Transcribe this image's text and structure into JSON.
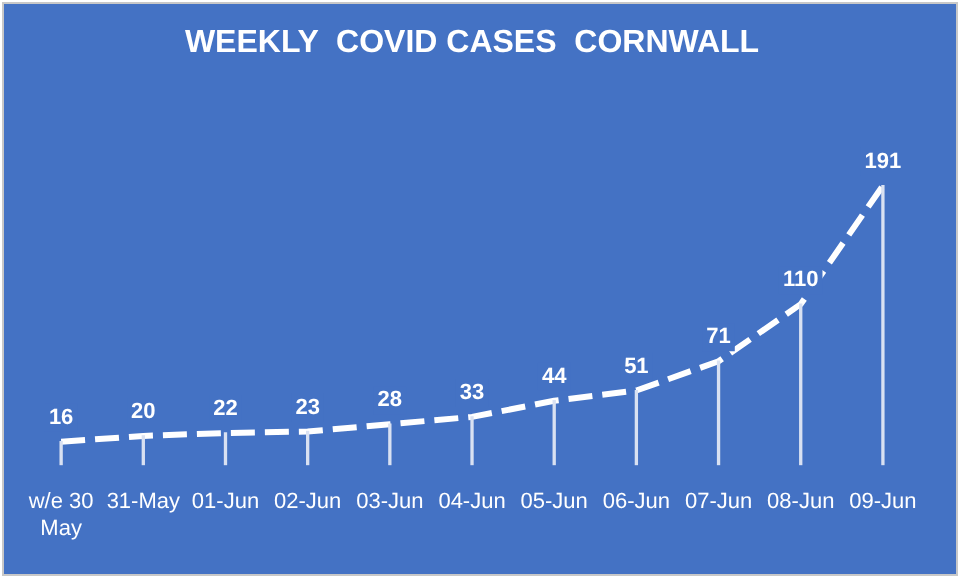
{
  "chart_data": {
    "type": "line",
    "title": "WEEKLY  COVID CASES  CORNWALL",
    "categories": [
      "w/e 30 May",
      "31-May",
      "01-Jun",
      "02-Jun",
      "03-Jun",
      "04-Jun",
      "05-Jun",
      "06-Jun",
      "07-Jun",
      "08-Jun",
      "09-Jun"
    ],
    "series": [
      {
        "color": "#ffffff",
        "values": [
          16,
          20,
          22,
          23,
          28,
          33,
          44,
          51,
          71,
          110,
          191
        ],
        "value_labels": [
          "16",
          "20",
          "22",
          "23",
          "28",
          "33",
          "44",
          "51",
          "71",
          "110",
          "191"
        ]
      },
      {
        "type": "bar",
        "color": "#d9e1f2",
        "values": [
          16,
          20,
          22,
          23,
          28,
          33,
          44,
          51,
          71,
          110,
          191
        ]
      }
    ],
    "line_style": "dashed",
    "marker": "none",
    "grid": false,
    "legend": false
  }
}
